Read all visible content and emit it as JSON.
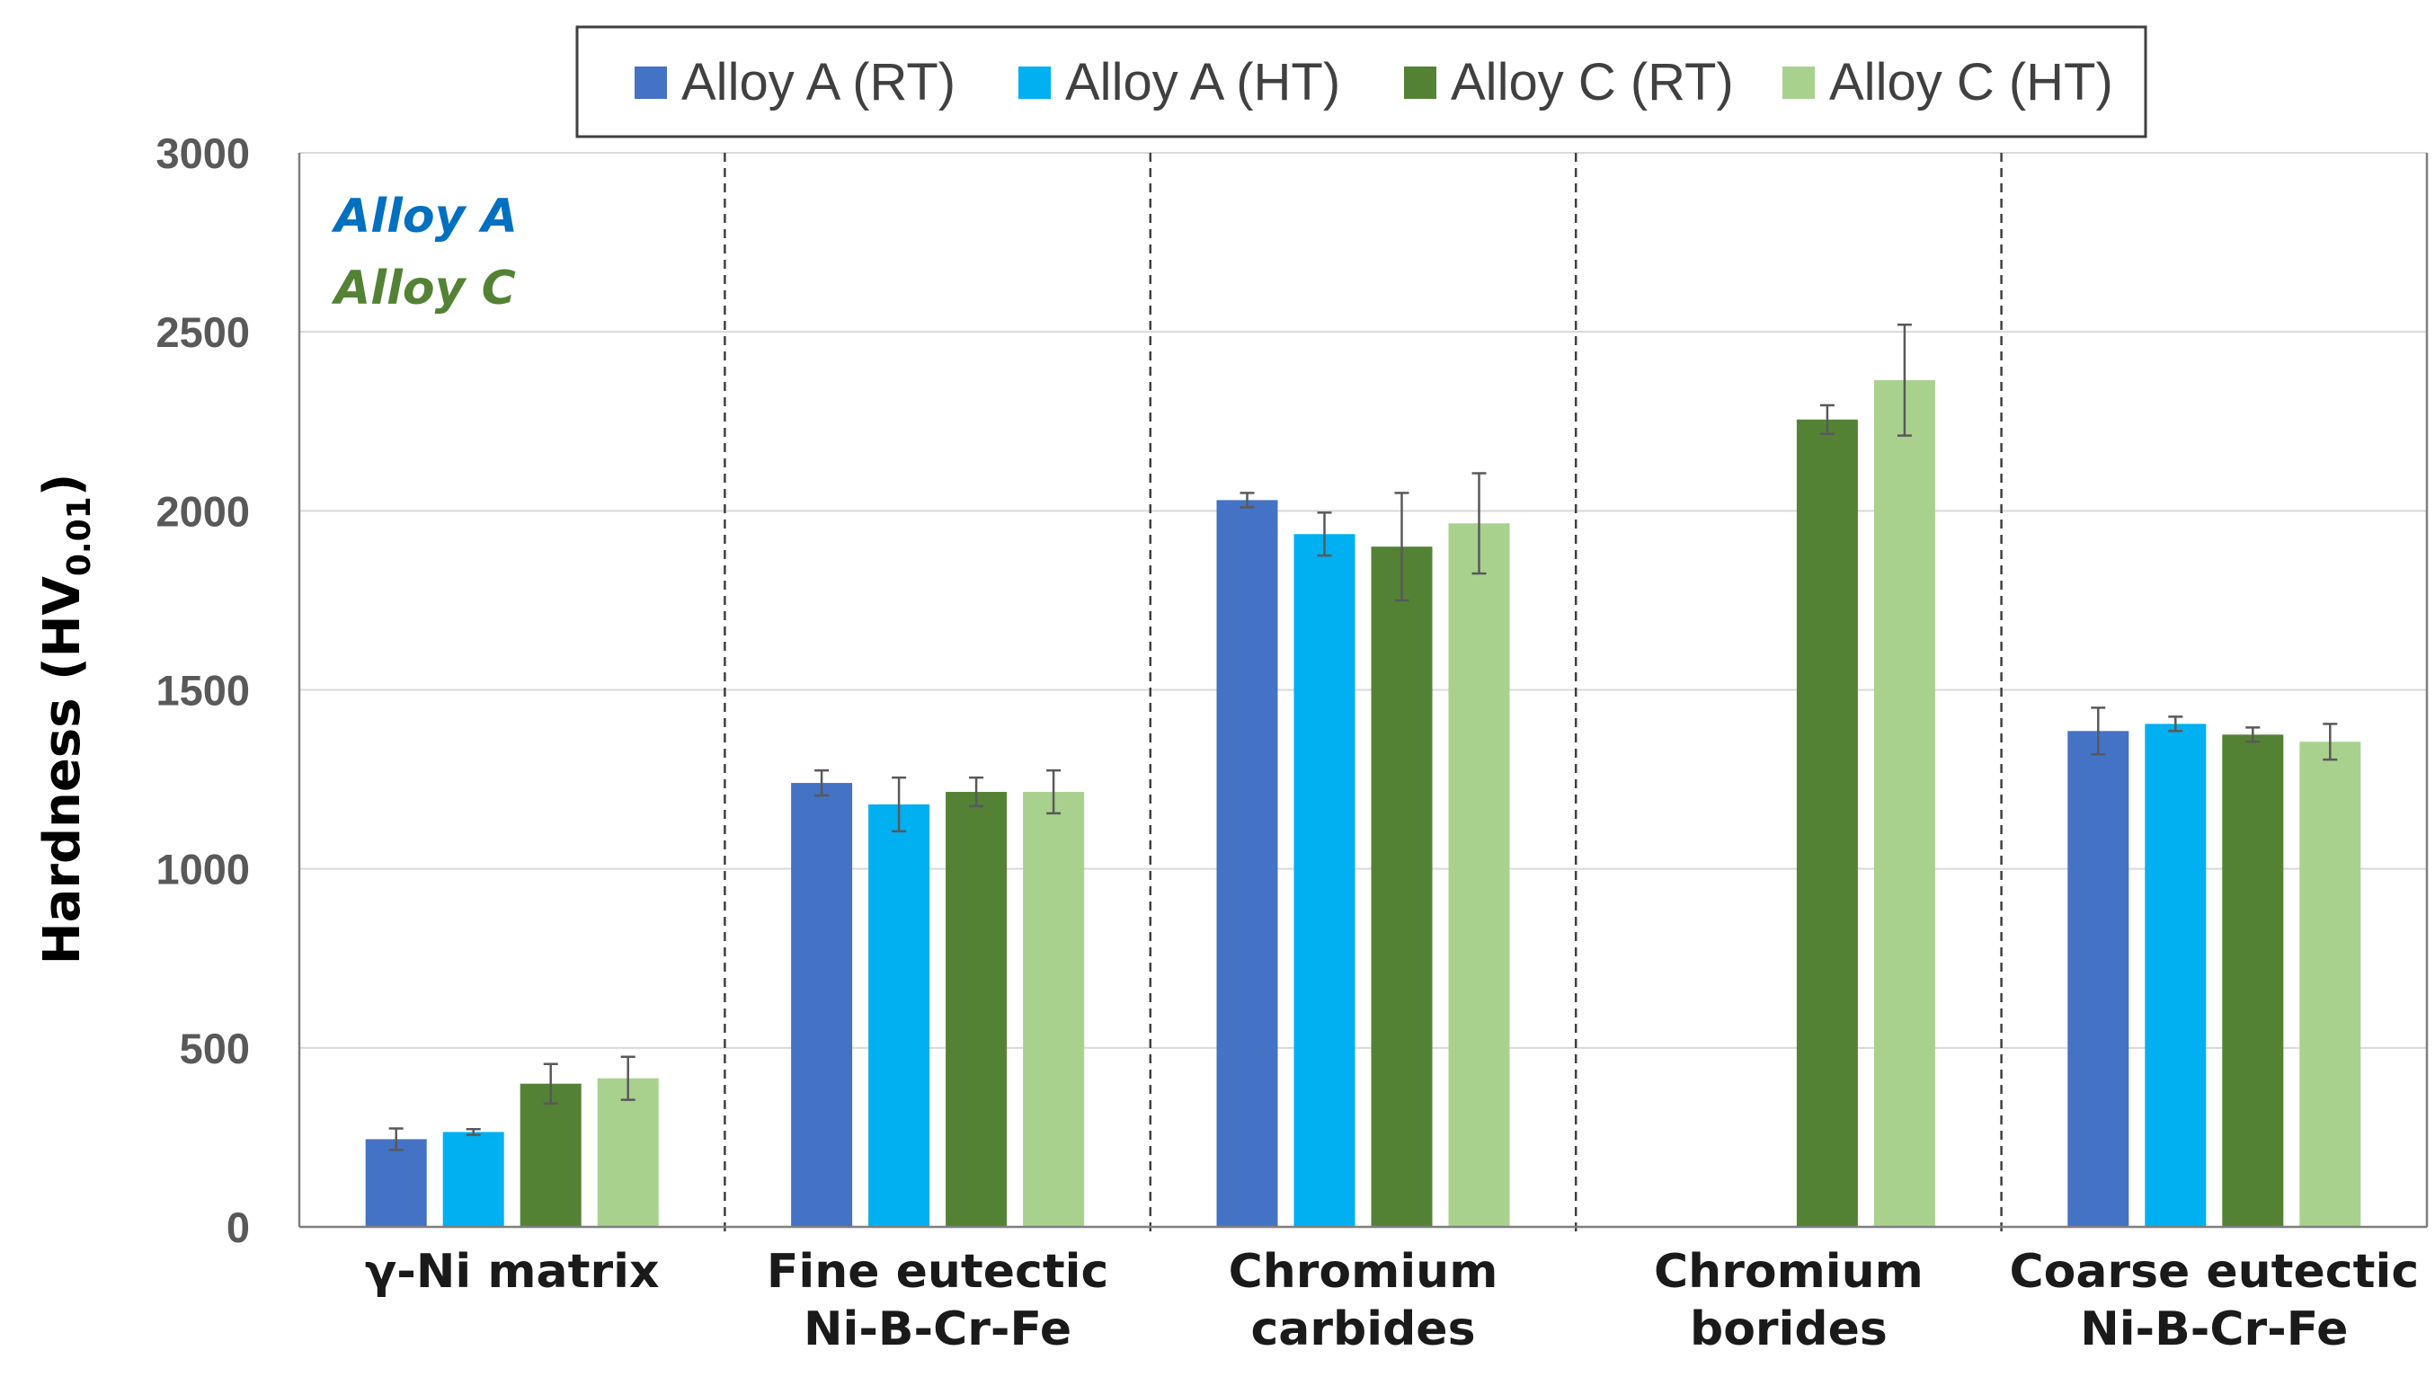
{
  "chart_data": {
    "type": "bar",
    "title": "",
    "xlabel": "",
    "ylabel": "Hardness (HV",
    "ylabel_subscript": "0.01",
    "ylabel_close": ")",
    "ylim": [
      0,
      3000
    ],
    "yticks": [
      "0",
      "500",
      "1000",
      "1500",
      "2000",
      "2500",
      "3000"
    ],
    "categories": [
      [
        "γ-Ni matrix"
      ],
      [
        "Fine eutectic",
        "Ni-B-Cr-Fe"
      ],
      [
        "Chromium",
        "carbides"
      ],
      [
        "Chromium",
        "borides"
      ],
      [
        "Coarse eutectic",
        "Ni-B-Cr-Fe"
      ]
    ],
    "series": [
      {
        "name": "Alloy A (RT)",
        "color": "#4472C4",
        "values": [
          245,
          1240,
          2030,
          null,
          1385
        ],
        "errors": [
          30,
          35,
          20,
          null,
          65
        ]
      },
      {
        "name": "Alloy A (HT)",
        "color": "#00B0F0",
        "values": [
          265,
          1180,
          1935,
          null,
          1405
        ],
        "errors": [
          8,
          75,
          60,
          null,
          20
        ]
      },
      {
        "name": "Alloy C (RT)",
        "color": "#548235",
        "values": [
          400,
          1215,
          1900,
          2255,
          1375
        ],
        "errors": [
          55,
          40,
          150,
          40,
          20
        ]
      },
      {
        "name": "Alloy C (HT)",
        "color": "#A9D18E",
        "values": [
          415,
          1215,
          1965,
          2365,
          1355
        ],
        "errors": [
          60,
          60,
          140,
          155,
          50
        ]
      }
    ],
    "legend_position": "top-center",
    "grid": true,
    "annotations": [
      {
        "text": "Alloy A",
        "color": "#0070C0"
      },
      {
        "text": "Alloy C",
        "color": "#548235"
      }
    ]
  }
}
